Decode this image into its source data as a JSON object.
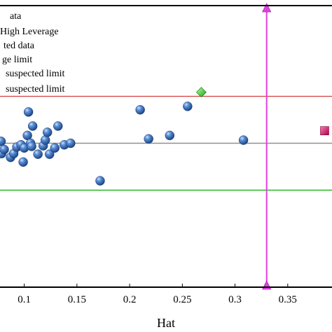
{
  "chart_data": {
    "type": "scatter",
    "title": "",
    "xlabel": "Hat",
    "ylabel": "",
    "xlim": [
      0.077,
      0.392
    ],
    "ylim": [
      -4.6,
      4.4
    ],
    "x_ticks": [
      0.1,
      0.15,
      0.2,
      0.25,
      0.3,
      0.35
    ],
    "x_tick_labels": [
      "0.1",
      "0.15",
      "0.2",
      "0.25",
      "0.3",
      "0.35"
    ],
    "legend": {
      "placement": "top-left",
      "entries": [
        "ata",
        "High Leverage",
        "ted data",
        "ge limit",
        "suspected limit",
        "suspected limit"
      ]
    },
    "lines": {
      "upper_limit_y": 1.5,
      "center_y": 0.0,
      "lower_limit_y": -1.5,
      "leverage_x": 0.33
    },
    "colors": {
      "data": "#3a6fb8",
      "high_leverage": "#e0146c",
      "suspected": "#22cc22",
      "upper_limit": "#d23c3c",
      "center": "#909090",
      "lower_limit": "#22b822",
      "leverage": "#e040e0"
    },
    "series": [
      {
        "role": "data",
        "marker": "circle",
        "points": [
          [
            0.078,
            0.06
          ],
          [
            0.0785,
            -0.33
          ],
          [
            0.081,
            -0.2
          ],
          [
            0.087,
            -0.45
          ],
          [
            0.09,
            -0.33
          ],
          [
            0.093,
            -0.12
          ],
          [
            0.097,
            -0.05
          ],
          [
            0.099,
            -0.6
          ],
          [
            0.1,
            -0.15
          ],
          [
            0.103,
            0.25
          ],
          [
            0.104,
            1.0
          ],
          [
            0.106,
            0.0
          ],
          [
            0.107,
            -0.1
          ],
          [
            0.108,
            0.55
          ],
          [
            0.113,
            -0.35
          ],
          [
            0.118,
            -0.08
          ],
          [
            0.12,
            0.1
          ],
          [
            0.122,
            0.35
          ],
          [
            0.124,
            -0.35
          ],
          [
            0.129,
            -0.15
          ],
          [
            0.132,
            0.55
          ],
          [
            0.138,
            -0.05
          ],
          [
            0.144,
            0.0
          ],
          [
            0.172,
            -1.2
          ],
          [
            0.21,
            1.07
          ],
          [
            0.218,
            0.14
          ],
          [
            0.238,
            0.25
          ],
          [
            0.255,
            1.18
          ],
          [
            0.308,
            0.1
          ]
        ]
      },
      {
        "role": "high_leverage",
        "marker": "square",
        "points": [
          [
            0.385,
            0.4
          ]
        ]
      },
      {
        "role": "suspected",
        "marker": "diamond",
        "points": [
          [
            0.268,
            1.63
          ]
        ]
      }
    ]
  }
}
